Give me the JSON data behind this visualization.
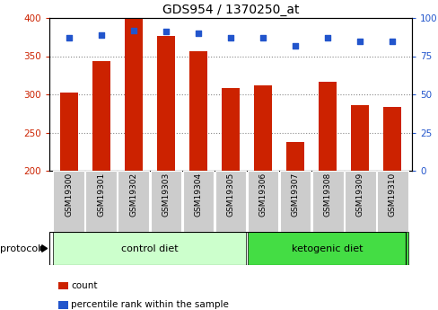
{
  "title": "GDS954 / 1370250_at",
  "samples": [
    "GSM19300",
    "GSM19301",
    "GSM19302",
    "GSM19303",
    "GSM19304",
    "GSM19305",
    "GSM19306",
    "GSM19307",
    "GSM19308",
    "GSM19309",
    "GSM19310"
  ],
  "counts": [
    302,
    344,
    400,
    376,
    357,
    308,
    312,
    238,
    316,
    286,
    283
  ],
  "percentile_ranks": [
    87,
    89,
    92,
    91,
    90,
    87,
    87,
    82,
    87,
    85,
    85
  ],
  "bar_color": "#cc2200",
  "dot_color": "#2255cc",
  "ylim_left": [
    200,
    400
  ],
  "ylim_right": [
    0,
    100
  ],
  "yticks_left": [
    200,
    250,
    300,
    350,
    400
  ],
  "yticks_right": [
    0,
    25,
    50,
    75,
    100
  ],
  "groups": [
    {
      "label": "control diet",
      "indices": [
        0,
        1,
        2,
        3,
        4,
        5
      ],
      "color": "#ccffcc",
      "border_color": "#000000"
    },
    {
      "label": "ketogenic diet",
      "indices": [
        6,
        7,
        8,
        9,
        10
      ],
      "color": "#44dd44",
      "border_color": "#000000"
    }
  ],
  "protocol_label": "protocol",
  "legend": [
    {
      "label": "count",
      "color": "#cc2200"
    },
    {
      "label": "percentile rank within the sample",
      "color": "#2255cc"
    }
  ],
  "grid_color": "#888888",
  "bg_color": "#ffffff",
  "plot_bg": "#ffffff",
  "tick_label_bg": "#cccccc",
  "left_color": "#cc2200",
  "right_color": "#2255cc"
}
